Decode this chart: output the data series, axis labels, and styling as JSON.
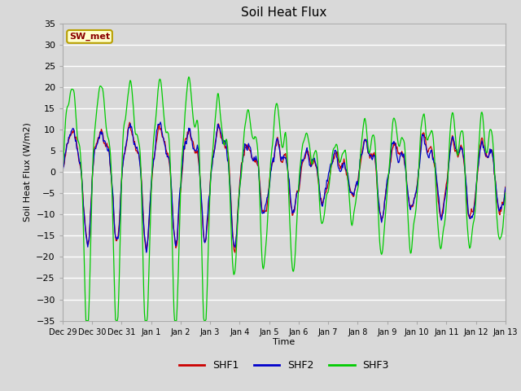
{
  "title": "Soil Heat Flux",
  "ylabel": "Soil Heat Flux (W/m2)",
  "xlabel": "Time",
  "ylim": [
    -35,
    35
  ],
  "yticks": [
    -35,
    -30,
    -25,
    -20,
    -15,
    -10,
    -5,
    0,
    5,
    10,
    15,
    20,
    25,
    30,
    35
  ],
  "bg_color": "#d9d9d9",
  "legend_labels": [
    "SHF1",
    "SHF2",
    "SHF3"
  ],
  "legend_colors": [
    "#cc0000",
    "#0000cc",
    "#00cc00"
  ],
  "site_label": "SW_met",
  "site_label_fgcolor": "#8b0000",
  "site_label_bgcolor": "#ffffcc",
  "xtick_labels": [
    "Dec 29",
    "Dec 30",
    "Dec 31",
    "Jan 1",
    "Jan 2",
    "Jan 3",
    "Jan 4",
    "Jan 5",
    "Jan 6",
    "Jan 7",
    "Jan 8",
    "Jan 9",
    "Jan 10",
    "Jan 11",
    "Jan 12",
    "Jan 13"
  ],
  "num_days": 15,
  "pts_per_day": 48,
  "seed_base": 1,
  "seed_diff1": 2,
  "seed_diff2": 3,
  "seed_shf3": 4
}
